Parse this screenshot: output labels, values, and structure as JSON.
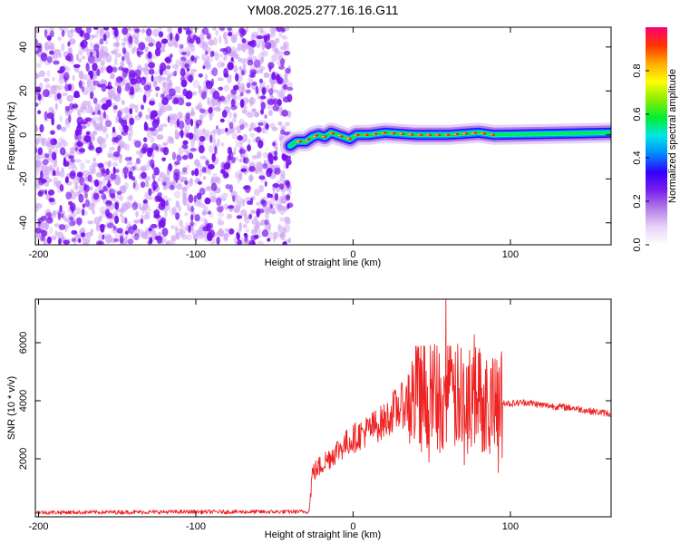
{
  "title": "YM08.2025.277.16.16.G11",
  "colors": {
    "series": "#ee2222",
    "noise_dark": "#7711ee",
    "noise_light": "#cfa8f5",
    "axis": "#000000",
    "background": "#ffffff"
  },
  "chart_data": [
    {
      "type": "heatmap",
      "name": "spectrogram",
      "title": "YM08.2025.277.16.16.G11",
      "xlabel": "Height of straight line (km)",
      "ylabel": "Frequency (Hz)",
      "xlim": [
        -202,
        164
      ],
      "ylim": [
        -50,
        49
      ],
      "x_ticks": [
        -200,
        -100,
        0,
        100
      ],
      "x_tick_labels": [
        "-200",
        "-100",
        "0",
        "100"
      ],
      "y_ticks": [
        -40,
        -20,
        0,
        20,
        40
      ],
      "y_tick_labels": [
        "-40",
        "-20",
        "0",
        "20",
        "40"
      ],
      "noise_region_x": [
        -202,
        -40
      ],
      "signal_start_x": -40,
      "signal_ridge": [
        {
          "x": -40,
          "y": -5
        },
        {
          "x": -36,
          "y": -3
        },
        {
          "x": -30,
          "y": -3
        },
        {
          "x": -26,
          "y": -1
        },
        {
          "x": -22,
          "y": 0
        },
        {
          "x": -18,
          "y": -1
        },
        {
          "x": -14,
          "y": 1
        },
        {
          "x": -10,
          "y": 0
        },
        {
          "x": -6,
          "y": -1
        },
        {
          "x": -2,
          "y": -2
        },
        {
          "x": 2,
          "y": 0
        },
        {
          "x": 10,
          "y": 0
        },
        {
          "x": 20,
          "y": 1
        },
        {
          "x": 40,
          "y": 0
        },
        {
          "x": 60,
          "y": 0
        },
        {
          "x": 80,
          "y": 1
        },
        {
          "x": 90,
          "y": 0
        },
        {
          "x": 164,
          "y": 1
        }
      ],
      "colorbar": {
        "label": "Normalized spectral amplitude",
        "range": [
          0,
          1
        ],
        "ticks": [
          0,
          0.2,
          0.4,
          0.6,
          0.8
        ],
        "tick_labels": [
          "0.0",
          "0.2",
          "0.4",
          "0.6",
          "0.8"
        ],
        "colors": [
          "#ffffff",
          "#e6d2f7",
          "#b37de8",
          "#7a1fea",
          "#3300ff",
          "#0088ff",
          "#00e5e5",
          "#00ee33",
          "#88ee00",
          "#ffff00",
          "#ffaa00",
          "#ff3300",
          "#ff0077"
        ]
      }
    },
    {
      "type": "line",
      "name": "snr",
      "xlabel": "Height of straight line (km)",
      "ylabel": "SNR (10 * v/v)",
      "xlim": [
        -202,
        164
      ],
      "ylim": [
        0,
        7500
      ],
      "x_ticks": [
        -200,
        -100,
        0,
        100
      ],
      "x_tick_labels": [
        "-200",
        "-100",
        "0",
        "100"
      ],
      "y_ticks": [
        2000,
        4000,
        6000
      ],
      "y_tick_labels": [
        "2000",
        "4000",
        "6000"
      ],
      "series": [
        {
          "name": "SNR",
          "points": [
            {
              "x": -202,
              "y": 150
            },
            {
              "x": -150,
              "y": 160
            },
            {
              "x": -100,
              "y": 170
            },
            {
              "x": -50,
              "y": 170
            },
            {
              "x": -28,
              "y": 180
            },
            {
              "x": -26,
              "y": 1500
            },
            {
              "x": -20,
              "y": 1800
            },
            {
              "x": -10,
              "y": 2300
            },
            {
              "x": 0,
              "y": 2700
            },
            {
              "x": 10,
              "y": 3000
            },
            {
              "x": 20,
              "y": 3300
            },
            {
              "x": 30,
              "y": 3800
            },
            {
              "x": 40,
              "y": 4100
            },
            {
              "x": 50,
              "y": 4100
            },
            {
              "x": 60,
              "y": 4100
            },
            {
              "x": 70,
              "y": 4100
            },
            {
              "x": 80,
              "y": 4100
            },
            {
              "x": 90,
              "y": 4000
            },
            {
              "x": 100,
              "y": 3900
            },
            {
              "x": 110,
              "y": 3950
            },
            {
              "x": 120,
              "y": 3850
            },
            {
              "x": 130,
              "y": 3800
            },
            {
              "x": 140,
              "y": 3750
            },
            {
              "x": 150,
              "y": 3650
            },
            {
              "x": 164,
              "y": 3550
            }
          ],
          "max_point": {
            "x": 59,
            "y": 7500
          }
        }
      ]
    }
  ]
}
